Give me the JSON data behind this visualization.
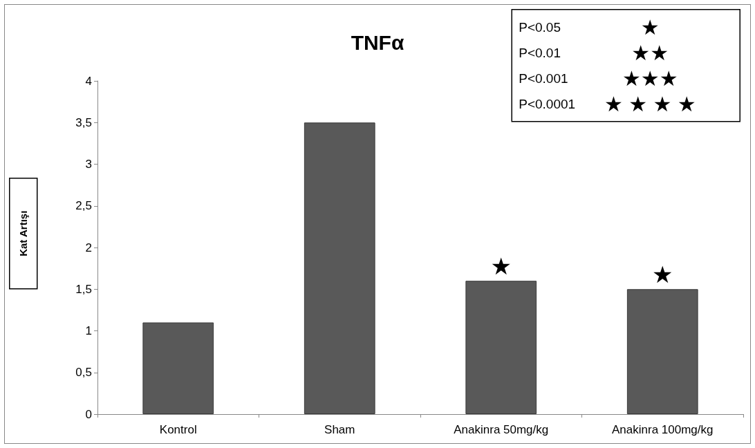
{
  "chart_data": {
    "type": "bar",
    "title": "TNFα",
    "ylabel": "Kat Artışı",
    "categories": [
      "Kontrol",
      "Sham",
      "Anakinra 50mg/kg",
      "Anakinra 100mg/kg"
    ],
    "values": [
      1.1,
      3.5,
      1.6,
      1.5
    ],
    "color": "#595959",
    "ylim": [
      0,
      4
    ],
    "yticks": [
      0,
      {
        "value": 0.5,
        "label": "0,5"
      },
      1,
      {
        "value": 1.5,
        "label": "1,5"
      },
      2,
      {
        "value": 2.5,
        "label": "2,5"
      },
      3,
      {
        "value": 3.5,
        "label": "3,5"
      },
      4
    ],
    "grid": false,
    "annotations": [
      {
        "text": "★",
        "x": "Anakinra 50mg/kg",
        "y": 1.6
      },
      {
        "text": "★",
        "x": "Anakinra 100mg/kg",
        "y": 1.5
      },
      "P<0.05 ★",
      "P<0.01 ★★",
      "P<0.001 ★★★",
      "P<0.0001 ★ ★ ★ ★"
    ]
  }
}
